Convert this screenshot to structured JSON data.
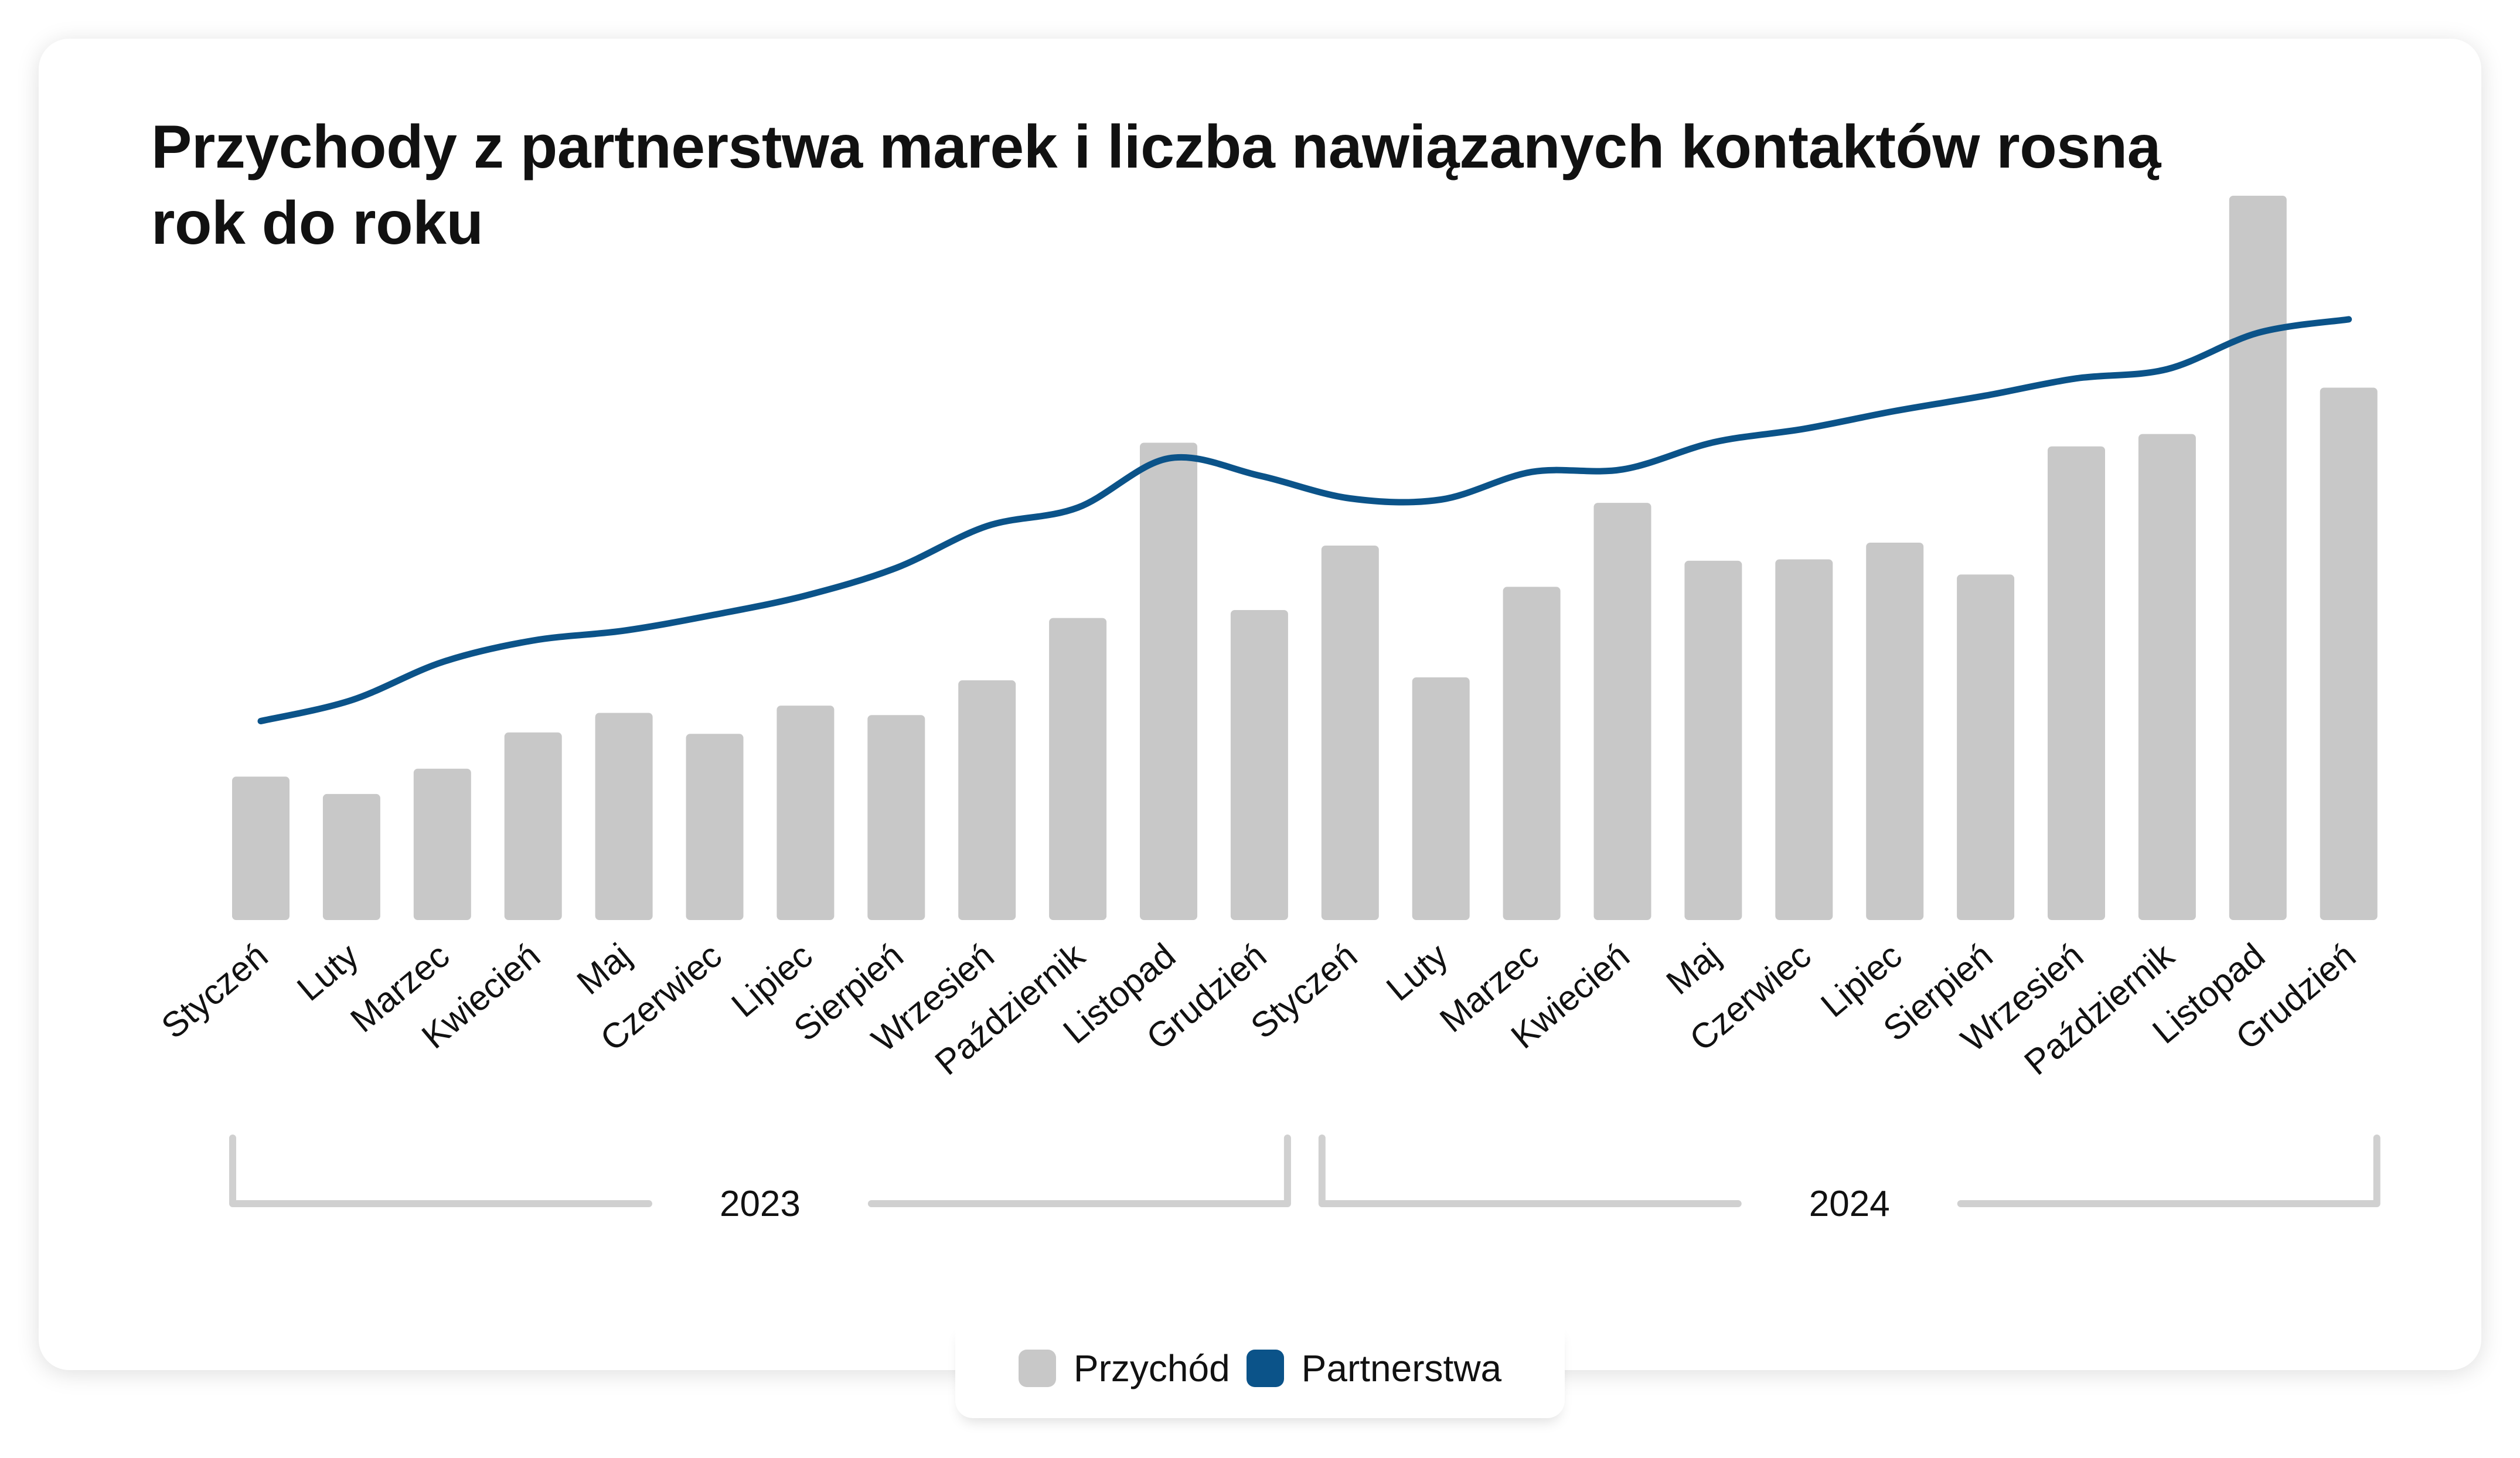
{
  "title": "Przychody z partnerstwa marek i liczba nawiązanych kontaktów rosną rok do roku",
  "colors": {
    "bar": "#c8c8c8",
    "line": "#0b5389",
    "bracket": "#d0d0d0"
  },
  "chart_data": {
    "type": "bar",
    "categories": [
      "Styczeń",
      "Luty",
      "Marzec",
      "Kwiecień",
      "Maj",
      "Czerwiec",
      "Lipiec",
      "Sierpień",
      "Wrzesień",
      "Październik",
      "Listopad",
      "Grudzień",
      "Styczeń",
      "Luty",
      "Marzec",
      "Kwiecień",
      "Maj",
      "Czerwiec",
      "Lipiec",
      "Sierpień",
      "Wrzesień",
      "Październik",
      "Listopad",
      "Grudzień"
    ],
    "groups": [
      {
        "label": "2023",
        "start": 0,
        "end": 11
      },
      {
        "label": "2024",
        "start": 12,
        "end": 23
      }
    ],
    "series": [
      {
        "name": "Przychód",
        "kind": "bar",
        "values": [
          19.8,
          17.4,
          20.9,
          25.9,
          28.6,
          25.7,
          29.6,
          28.3,
          33.1,
          41.7,
          65.9,
          42.8,
          51.7,
          33.5,
          46.0,
          57.6,
          49.6,
          49.8,
          52.1,
          47.7,
          65.4,
          67.1,
          100,
          73.5
        ]
      },
      {
        "name": "Partnerstwa",
        "kind": "line",
        "values": [
          32.9,
          36.3,
          42.5,
          46.0,
          47.6,
          50.2,
          53.3,
          57.8,
          64.6,
          67.6,
          75.6,
          72.8,
          69.1,
          68.9,
          73.4,
          73.8,
          78.2,
          80.4,
          83.3,
          85.8,
          88.6,
          90.1,
          96.0,
          98.2
        ]
      }
    ],
    "xlabel": "",
    "ylabel": "",
    "ylim": [
      0,
      100
    ],
    "legend": "bottom-center",
    "grid": false
  }
}
